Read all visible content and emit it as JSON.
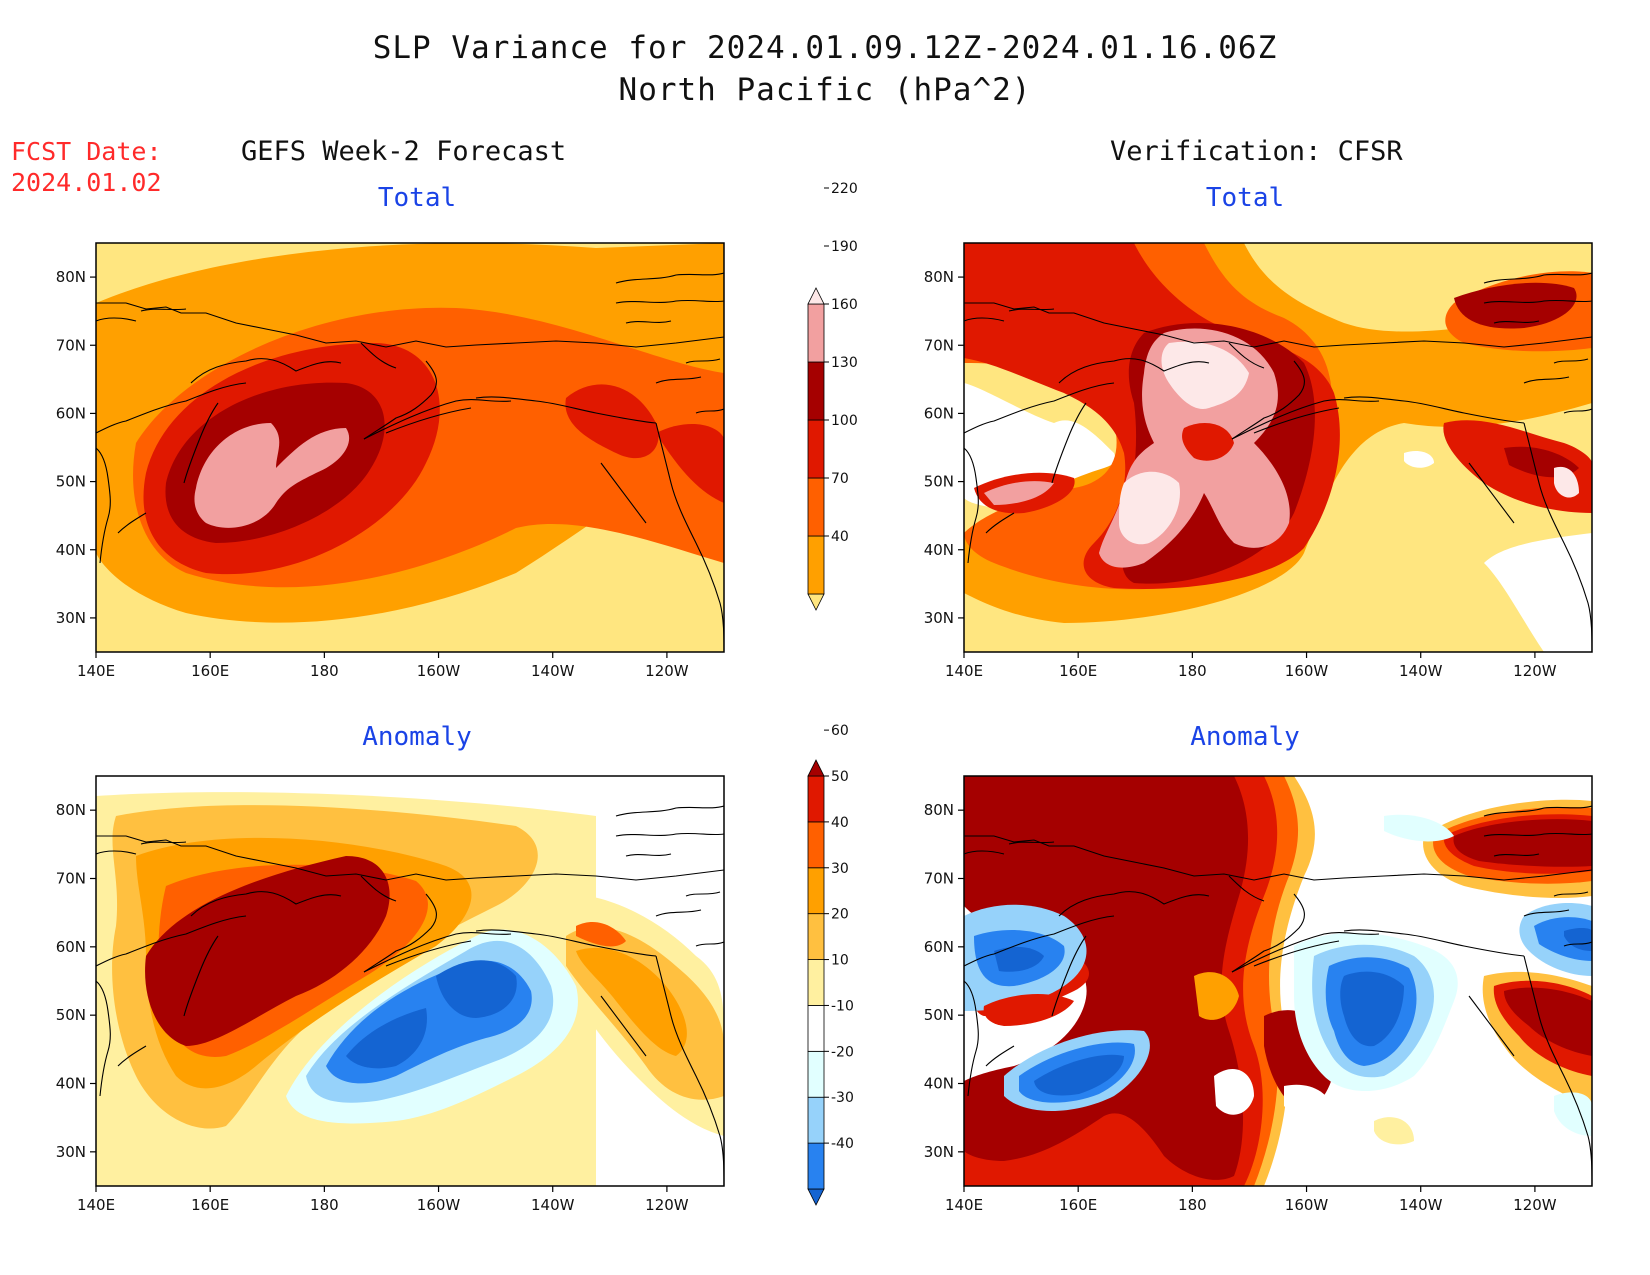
{
  "header": {
    "title_line1": "SLP Variance for 2024.01.09.12Z-2024.01.16.06Z",
    "title_line2": "North Pacific (hPa^2)",
    "fcst_line1": "FCST Date:",
    "fcst_line2": "2024.01.02",
    "left_column_title": "GEFS Week-2 Forecast",
    "right_column_title": "Verification: CFSR"
  },
  "panels": [
    {
      "id": "fcst-total",
      "title": "Total"
    },
    {
      "id": "verif-total",
      "title": "Total"
    },
    {
      "id": "fcst-anomaly",
      "title": "Anomaly"
    },
    {
      "id": "verif-anomaly",
      "title": "Anomaly"
    }
  ],
  "axes": {
    "x_ticks": [
      "140E",
      "160E",
      "180",
      "160W",
      "140W",
      "120W"
    ],
    "y_ticks": [
      "80N",
      "70N",
      "60N",
      "50N",
      "40N",
      "30N"
    ],
    "lon_range": [
      140,
      250
    ],
    "lat_range": [
      25,
      85
    ]
  },
  "colorbars": {
    "total": {
      "labels": [
        "40",
        "70",
        "100",
        "130",
        "160",
        "190",
        "220"
      ],
      "colors": [
        "#ffe680",
        "#ffa000",
        "#ff6000",
        "#e01800",
        "#a50000",
        "#f2a0a0",
        "#fde8e8"
      ]
    },
    "anomaly": {
      "labels": [
        "-40",
        "-30",
        "-20",
        "-10",
        "10",
        "20",
        "30",
        "40",
        "50",
        "60"
      ],
      "colors": [
        "#1464d2",
        "#2882f0",
        "#96d2fa",
        "#e1ffff",
        "#ffffff",
        "#fff0a0",
        "#ffc040",
        "#ffa000",
        "#ff6000",
        "#e01800",
        "#a50000"
      ]
    }
  },
  "colors": {
    "title_blue": "#1a43e6",
    "fcst_red": "#ff2a2a"
  }
}
